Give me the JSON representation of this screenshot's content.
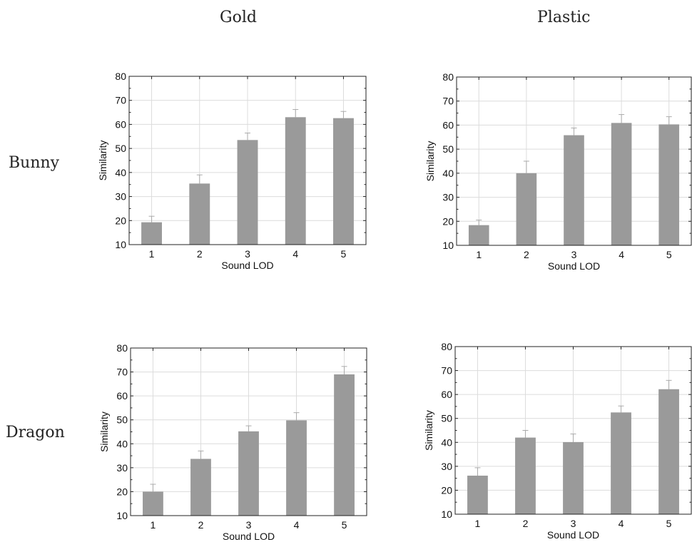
{
  "column_headers": [
    "Gold",
    "Plastic"
  ],
  "row_headers": [
    "Bunny",
    "Dragon"
  ],
  "chart_data": [
    {
      "type": "bar",
      "title": "",
      "xlabel": "Sound LOD",
      "ylabel": "Similarity",
      "ylim": [
        10,
        80
      ],
      "yticks": [
        10,
        20,
        30,
        40,
        50,
        60,
        70,
        80
      ],
      "categories": [
        "1",
        "2",
        "3",
        "4",
        "5"
      ],
      "values": [
        19.3,
        35.4,
        53.5,
        63.0,
        62.6
      ],
      "error_upper": [
        21.8,
        39.0,
        56.4,
        66.2,
        65.4
      ],
      "grid": true,
      "bar_color": "#9a9a9a"
    },
    {
      "type": "bar",
      "title": "",
      "xlabel": "Sound LOD",
      "ylabel": "Similarity",
      "ylim": [
        10,
        80
      ],
      "yticks": [
        10,
        20,
        30,
        40,
        50,
        60,
        70,
        80
      ],
      "categories": [
        "1",
        "2",
        "3",
        "4",
        "5"
      ],
      "values": [
        18.4,
        40.0,
        55.8,
        60.9,
        60.3
      ],
      "error_upper": [
        20.5,
        45.0,
        58.8,
        64.4,
        63.5
      ],
      "grid": true,
      "bar_color": "#9a9a9a"
    },
    {
      "type": "bar",
      "title": "",
      "xlabel": "Sound LOD",
      "ylabel": "Similarity",
      "ylim": [
        10,
        80
      ],
      "yticks": [
        10,
        20,
        30,
        40,
        50,
        60,
        70,
        80
      ],
      "categories": [
        "1",
        "2",
        "3",
        "4",
        "5"
      ],
      "values": [
        20.0,
        33.7,
        45.2,
        49.8,
        69.0
      ],
      "error_upper": [
        23.1,
        37.0,
        47.5,
        53.0,
        72.3
      ],
      "grid": true,
      "bar_color": "#9a9a9a"
    },
    {
      "type": "bar",
      "title": "",
      "xlabel": "Sound LOD",
      "ylabel": "Similarity",
      "ylim": [
        10,
        80
      ],
      "yticks": [
        10,
        20,
        30,
        40,
        50,
        60,
        70,
        80
      ],
      "categories": [
        "1",
        "2",
        "3",
        "4",
        "5"
      ],
      "values": [
        26.1,
        42.0,
        40.1,
        52.5,
        62.2
      ],
      "error_upper": [
        29.4,
        45.0,
        43.5,
        55.2,
        65.9
      ],
      "grid": true,
      "bar_color": "#9a9a9a"
    }
  ]
}
